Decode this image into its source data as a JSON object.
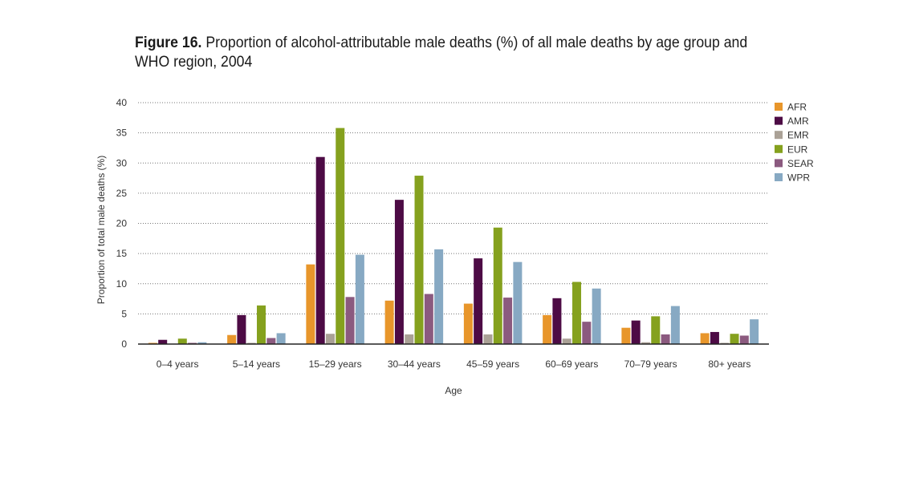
{
  "figure": {
    "number": "Figure 16.",
    "title": "Proportion of alcohol-attributable male deaths (%) of all male deaths by age group and WHO region, 2004"
  },
  "chart_data": {
    "type": "bar",
    "xlabel": "Age",
    "ylabel": "Proportion of total male deaths (%)",
    "ylim": [
      0,
      40
    ],
    "yticks": [
      0,
      5,
      10,
      15,
      20,
      25,
      30,
      35,
      40
    ],
    "grid": "horizontal dotted",
    "legend_position": "right",
    "categories": [
      "0–4 years",
      "5–14 years",
      "15–29 years",
      "30–44 years",
      "45–59 years",
      "60–69 years",
      "70–79 years",
      "80+ years"
    ],
    "series": [
      {
        "name": "AFR",
        "color": "#e8962b",
        "values": [
          0.2,
          1.5,
          13.2,
          7.2,
          6.7,
          4.8,
          2.7,
          1.8
        ]
      },
      {
        "name": "AMR",
        "color": "#4d0b45",
        "values": [
          0.7,
          4.8,
          31.0,
          23.9,
          14.2,
          7.6,
          3.9,
          2.0
        ]
      },
      {
        "name": "EMR",
        "color": "#aaa196",
        "values": [
          0.0,
          0.2,
          1.7,
          1.6,
          1.6,
          0.9,
          0.3,
          0.2
        ]
      },
      {
        "name": "EUR",
        "color": "#85a11e",
        "values": [
          0.9,
          6.4,
          35.8,
          27.9,
          19.3,
          10.3,
          4.6,
          1.7
        ]
      },
      {
        "name": "SEAR",
        "color": "#8b5a7f",
        "values": [
          0.2,
          1.0,
          7.8,
          8.3,
          7.7,
          3.7,
          1.6,
          1.4
        ]
      },
      {
        "name": "WPR",
        "color": "#87a9c3",
        "values": [
          0.3,
          1.8,
          14.8,
          15.7,
          13.6,
          9.2,
          6.3,
          4.1
        ]
      }
    ]
  }
}
